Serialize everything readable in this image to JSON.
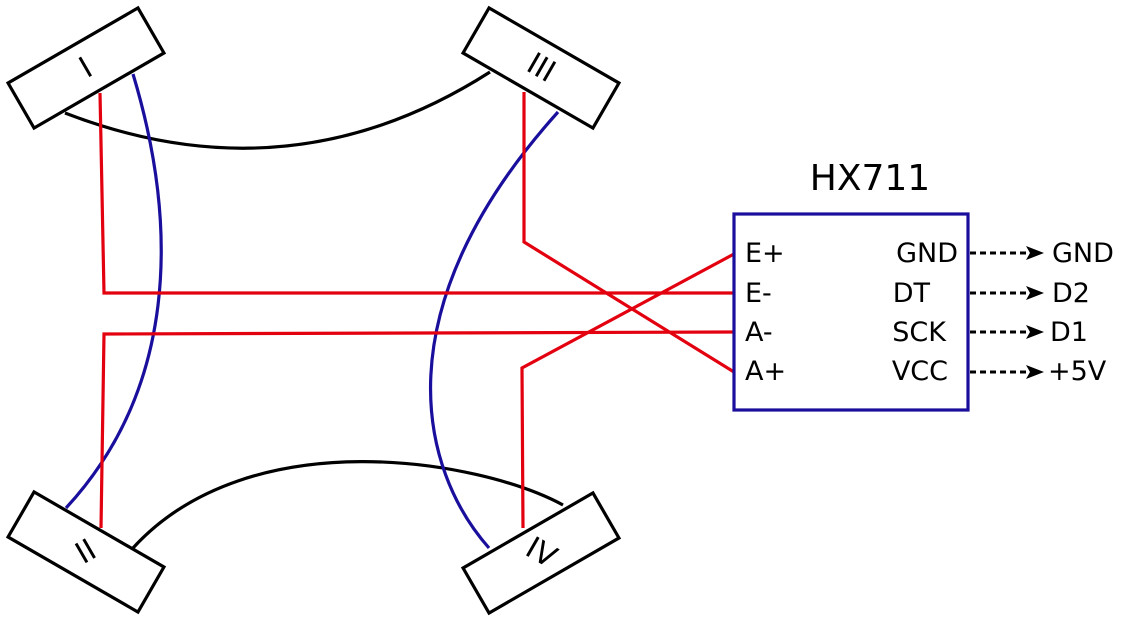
{
  "module": {
    "title": "HX711",
    "left_pins": [
      "E+",
      "E-",
      "A-",
      "A+"
    ],
    "right_pins": [
      "GND",
      "DT",
      "SCK",
      "VCC"
    ],
    "outputs": [
      "GND",
      "D2",
      "D1",
      "+5V"
    ]
  },
  "load_cells": {
    "top_left": "I",
    "bottom_left": "II",
    "top_right": "III",
    "bottom_right": "IV"
  },
  "colors": {
    "red_wire": "#e3000f",
    "blue_wire": "#1a0f9c",
    "black_wire": "#000000",
    "module_border": "#1a0f9c"
  }
}
